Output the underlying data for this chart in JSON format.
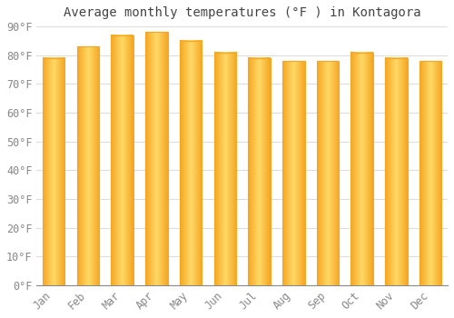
{
  "title": "Average monthly temperatures (°F ) in Kontagora",
  "months": [
    "Jan",
    "Feb",
    "Mar",
    "Apr",
    "May",
    "Jun",
    "Jul",
    "Aug",
    "Sep",
    "Oct",
    "Nov",
    "Dec"
  ],
  "values": [
    79,
    83,
    87,
    88,
    85,
    81,
    79,
    78,
    78,
    81,
    79,
    78
  ],
  "bar_color_center": "#FFD966",
  "bar_color_edge": "#F5A623",
  "background_color": "#FFFFFF",
  "plot_bg_color": "#FFFFFF",
  "grid_color": "#DDDDDD",
  "ylim": [
    0,
    90
  ],
  "yticks": [
    0,
    10,
    20,
    30,
    40,
    50,
    60,
    70,
    80,
    90
  ],
  "title_fontsize": 10,
  "tick_fontsize": 8.5,
  "bar_width": 0.65
}
